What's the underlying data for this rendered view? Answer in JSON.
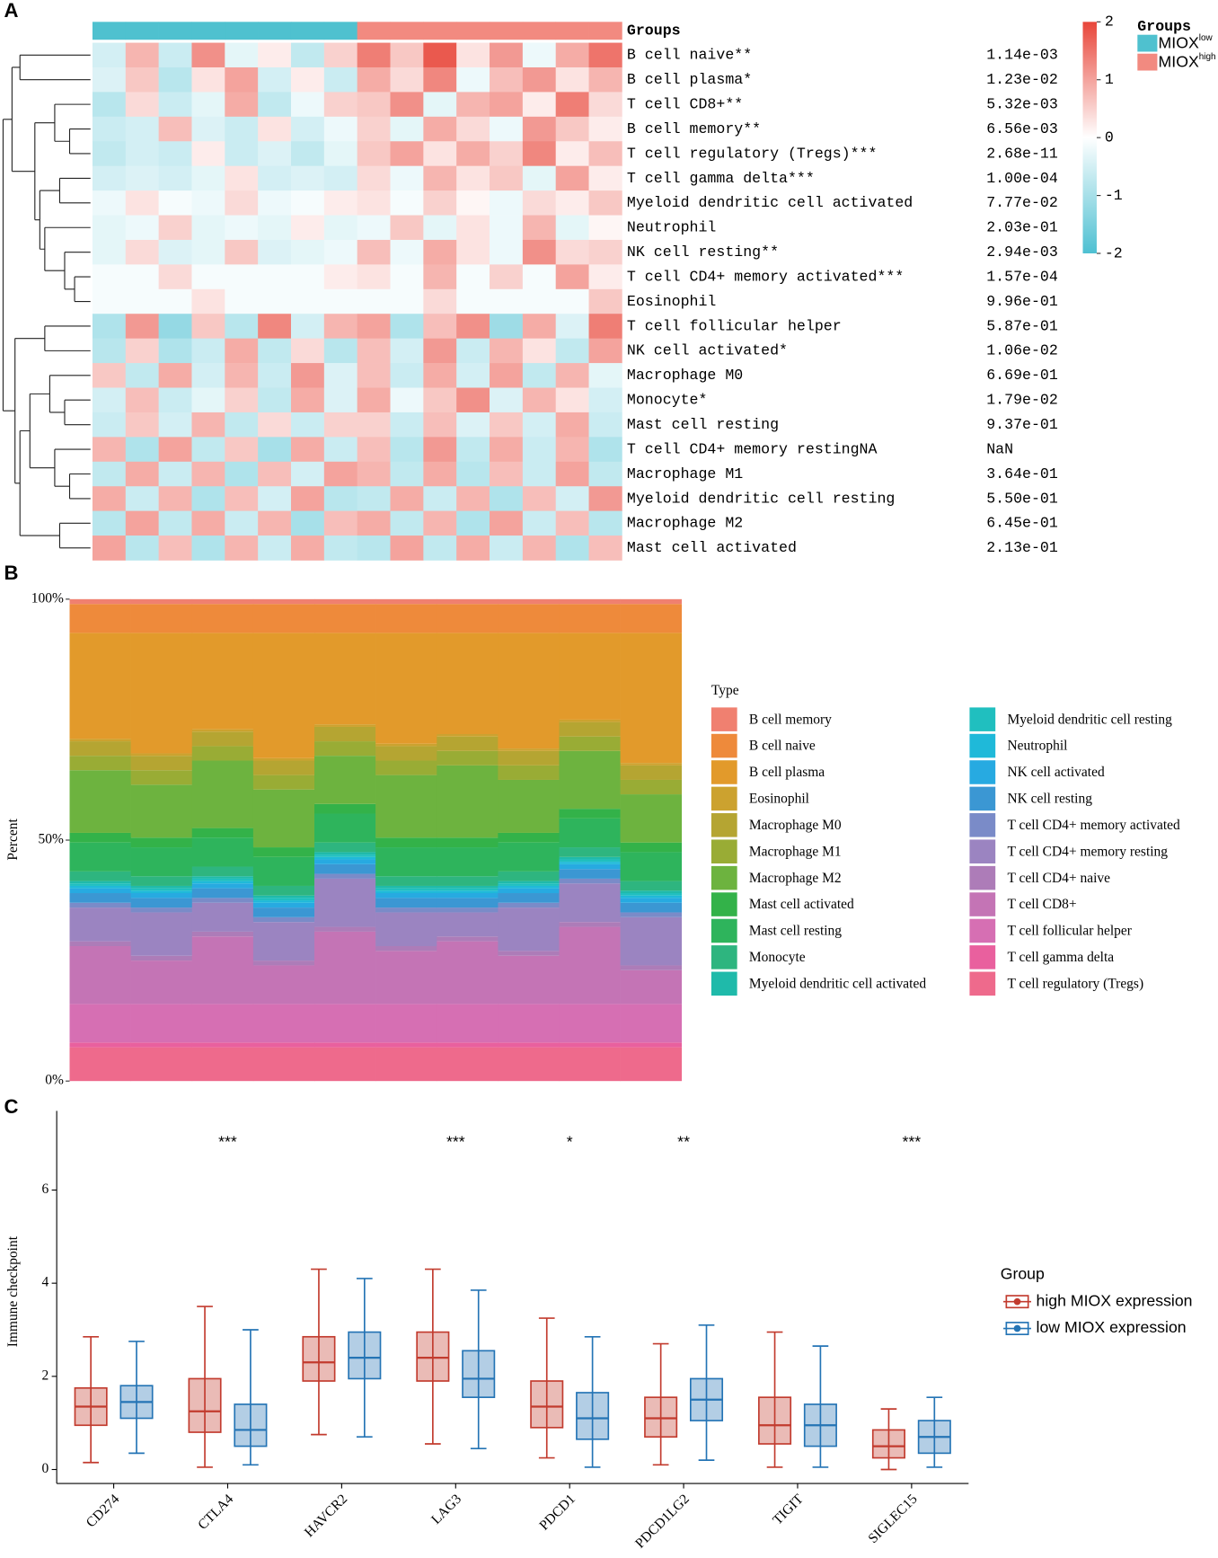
{
  "chart_data": [
    {
      "type": "heatmap",
      "panel": "A",
      "group_title": "Groups",
      "groups": [
        {
          "name": "MIOX",
          "sup": "low",
          "color": "#4fc1cf"
        },
        {
          "name": "MIOX",
          "sup": "high",
          "color": "#f28a80"
        }
      ],
      "column_groups": [
        0,
        0,
        0,
        0,
        0,
        0,
        0,
        0,
        1,
        1,
        1,
        1,
        1,
        1,
        1,
        1
      ],
      "colorbar": {
        "range": [
          -2,
          2
        ],
        "ticks": [
          2,
          1,
          0,
          -1,
          -2
        ],
        "colors": [
          "#4ec0d2",
          "#ffffff",
          "#e8463a"
        ]
      },
      "rows": [
        {
          "label": "B cell naive**",
          "p": "1.14e-03",
          "values": [
            -0.5,
            0.8,
            -0.6,
            1.2,
            -0.3,
            0.2,
            -0.7,
            0.5,
            1.4,
            0.6,
            1.8,
            0.3,
            1.1,
            -0.2,
            0.9,
            1.5
          ]
        },
        {
          "label": "B cell plasma*",
          "p": "1.23e-02",
          "values": [
            -0.4,
            0.6,
            -0.8,
            0.3,
            1.0,
            -0.5,
            0.2,
            -0.6,
            0.9,
            0.4,
            1.3,
            -0.2,
            0.7,
            1.1,
            0.3,
            0.8
          ]
        },
        {
          "label": "T cell CD8+**",
          "p": "5.32e-03",
          "values": [
            -0.8,
            0.4,
            -0.6,
            -0.3,
            0.9,
            -0.7,
            -0.2,
            0.5,
            0.6,
            1.2,
            -0.3,
            0.8,
            1.0,
            0.2,
            1.4,
            0.4
          ]
        },
        {
          "label": "B cell memory**",
          "p": "6.56e-03",
          "values": [
            -0.6,
            -0.5,
            0.7,
            -0.4,
            -0.6,
            0.3,
            -0.5,
            -0.2,
            0.5,
            -0.3,
            0.9,
            0.4,
            -0.2,
            1.1,
            0.6,
            0.2
          ]
        },
        {
          "label": "T cell regulatory (Tregs)***",
          "p": "2.68e-11",
          "values": [
            -0.7,
            -0.5,
            -0.6,
            0.2,
            -0.6,
            -0.4,
            -0.7,
            -0.3,
            0.6,
            1.0,
            0.3,
            0.9,
            0.5,
            1.3,
            0.2,
            0.7
          ]
        },
        {
          "label": "T cell gamma delta***",
          "p": "1.00e-04",
          "values": [
            -0.5,
            -0.4,
            -0.5,
            -0.3,
            0.3,
            -0.5,
            -0.4,
            -0.5,
            0.4,
            -0.2,
            0.8,
            0.3,
            0.6,
            -0.3,
            1.0,
            0.2
          ]
        },
        {
          "label": "Myeloid dendritic cell activated",
          "p": "7.77e-02",
          "values": [
            -0.2,
            0.3,
            -0.1,
            -0.2,
            0.4,
            -0.2,
            -0.1,
            0.2,
            0.3,
            -0.1,
            0.5,
            0.1,
            -0.2,
            0.4,
            0.2,
            0.6
          ]
        },
        {
          "label": "Neutrophil",
          "p": "2.03e-01",
          "values": [
            -0.3,
            -0.2,
            0.5,
            -0.3,
            -0.2,
            -0.3,
            0.2,
            -0.3,
            -0.2,
            0.6,
            -0.3,
            0.3,
            -0.2,
            0.8,
            -0.3,
            0.1
          ]
        },
        {
          "label": "NK cell resting**",
          "p": "2.94e-03",
          "values": [
            -0.3,
            0.4,
            -0.4,
            -0.3,
            0.6,
            -0.4,
            -0.3,
            -0.2,
            0.7,
            -0.2,
            0.9,
            0.3,
            -0.2,
            1.2,
            0.4,
            0.5
          ]
        },
        {
          "label": "T cell CD4+ memory activated***",
          "p": "1.57e-04",
          "values": [
            -0.1,
            -0.1,
            0.4,
            -0.1,
            -0.1,
            -0.1,
            -0.1,
            0.2,
            0.3,
            -0.1,
            0.8,
            -0.1,
            0.5,
            -0.1,
            1.0,
            0.2
          ]
        },
        {
          "label": "Eosinophil",
          "p": "9.96e-01",
          "values": [
            -0.1,
            -0.1,
            -0.1,
            0.3,
            -0.1,
            -0.1,
            -0.1,
            -0.1,
            -0.1,
            -0.1,
            0.4,
            -0.1,
            -0.1,
            -0.1,
            -0.1,
            0.6
          ]
        },
        {
          "label": "T cell follicular helper",
          "p": "5.87e-01",
          "values": [
            -0.9,
            1.1,
            -1.2,
            0.6,
            -0.8,
            1.3,
            -0.5,
            0.8,
            1.0,
            -0.9,
            0.7,
            1.2,
            -1.1,
            0.9,
            -0.4,
            1.4
          ]
        },
        {
          "label": "NK cell activated*",
          "p": "1.06e-02",
          "values": [
            -0.8,
            0.5,
            -0.9,
            -0.6,
            0.9,
            -0.7,
            0.4,
            -0.8,
            0.7,
            -0.5,
            1.1,
            -0.6,
            0.8,
            0.3,
            -0.7,
            1.0
          ]
        },
        {
          "label": "Macrophage M0",
          "p": "6.69e-01",
          "values": [
            0.6,
            -0.7,
            0.9,
            -0.5,
            0.8,
            -0.6,
            1.1,
            -0.4,
            0.7,
            -0.6,
            0.9,
            -0.5,
            1.0,
            -0.7,
            0.8,
            -0.3
          ]
        },
        {
          "label": "Monocyte*",
          "p": "1.79e-02",
          "values": [
            -0.5,
            0.7,
            -0.6,
            -0.3,
            0.5,
            -0.7,
            0.9,
            -0.4,
            0.9,
            -0.2,
            0.6,
            1.2,
            -0.4,
            0.8,
            0.3,
            -0.5
          ]
        },
        {
          "label": "Mast cell resting",
          "p": "9.37e-01",
          "values": [
            -0.6,
            0.6,
            -0.5,
            0.8,
            -0.7,
            0.4,
            -0.6,
            0.5,
            0.5,
            -0.6,
            0.7,
            -0.4,
            0.6,
            -0.5,
            0.9,
            -0.6
          ]
        },
        {
          "label": "T cell CD4+ memory restingNA",
          "p": "NaN",
          "values": [
            0.8,
            -0.9,
            1.0,
            -0.7,
            0.6,
            -1.0,
            0.9,
            -0.6,
            0.7,
            -0.8,
            1.1,
            -0.7,
            0.9,
            -0.6,
            0.8,
            -0.9
          ]
        },
        {
          "label": "Macrophage M1",
          "p": "3.64e-01",
          "values": [
            -0.7,
            0.9,
            -0.6,
            0.8,
            -0.9,
            0.7,
            -0.5,
            1.0,
            0.8,
            -0.7,
            0.9,
            -0.8,
            0.7,
            -0.6,
            1.0,
            -0.7
          ]
        },
        {
          "label": "Myeloid dendritic cell resting",
          "p": "5.50e-01",
          "values": [
            0.9,
            -0.6,
            0.8,
            -0.9,
            0.7,
            -0.5,
            1.0,
            -0.8,
            -0.7,
            0.9,
            -0.6,
            0.8,
            -0.9,
            0.7,
            -0.5,
            1.1
          ]
        },
        {
          "label": "Macrophage M2",
          "p": "6.45e-01",
          "values": [
            -0.8,
            1.0,
            -0.7,
            0.9,
            -0.6,
            0.8,
            -1.0,
            0.7,
            0.9,
            -0.7,
            0.8,
            -0.9,
            1.0,
            -0.6,
            0.7,
            -0.8
          ]
        },
        {
          "label": "Mast cell activated",
          "p": "2.13e-01",
          "values": [
            1.0,
            -0.8,
            0.7,
            -0.9,
            0.8,
            -0.6,
            0.9,
            -0.7,
            -0.8,
            1.0,
            -0.7,
            0.9,
            -0.6,
            0.8,
            -0.9,
            0.7
          ]
        }
      ]
    },
    {
      "type": "stacked_bar",
      "panel": "B",
      "ylabel": "Percent",
      "legend_title": "Type",
      "categories": [
        null,
        null,
        null,
        null,
        null,
        null,
        null,
        null,
        null,
        null
      ],
      "ylim": [
        0,
        100
      ],
      "yticks": [
        {
          "value": 0,
          "label": "0%"
        },
        {
          "value": 50,
          "label": "50%"
        },
        {
          "value": 100,
          "label": "100%"
        }
      ],
      "series": [
        {
          "name": "B cell memory",
          "color": "#f08070",
          "values": [
            1,
            1,
            1,
            1,
            1,
            1,
            1,
            1,
            1,
            1
          ]
        },
        {
          "name": "B cell naive",
          "color": "#ee8a3b",
          "values": [
            6,
            6,
            6,
            6,
            6,
            6,
            6,
            6,
            6,
            6
          ]
        },
        {
          "name": "B cell plasma",
          "color": "#e29a2b",
          "values": [
            22,
            25,
            20,
            26,
            19,
            23,
            21,
            24,
            18,
            27
          ]
        },
        {
          "name": "Eosinophil",
          "color": "#cca22f",
          "values": [
            0.5,
            0.5,
            0.5,
            0.5,
            0.5,
            0.5,
            0.5,
            0.5,
            0.5,
            0.5
          ]
        },
        {
          "name": "Macrophage M0",
          "color": "#b5a532",
          "values": [
            3,
            3,
            3,
            3,
            3,
            3,
            3,
            3,
            3,
            3
          ]
        },
        {
          "name": "Macrophage M1",
          "color": "#99ac35",
          "values": [
            3,
            3,
            3,
            3,
            3,
            3,
            3,
            3,
            3,
            3
          ]
        },
        {
          "name": "Macrophage M2",
          "color": "#6db33f",
          "values": [
            13,
            11,
            14,
            12,
            10,
            13,
            15,
            11,
            12,
            10
          ]
        },
        {
          "name": "Mast cell activated",
          "color": "#33b249",
          "values": [
            2,
            2,
            2,
            2,
            2,
            2,
            2,
            2,
            2,
            2
          ]
        },
        {
          "name": "Mast cell resting",
          "color": "#2eb45c",
          "values": [
            6,
            6,
            6,
            6,
            6,
            6,
            6,
            6,
            6,
            6
          ]
        },
        {
          "name": "Monocyte",
          "color": "#2eb57f",
          "values": [
            2,
            2,
            2,
            2,
            2,
            2,
            2,
            2,
            2,
            2
          ]
        },
        {
          "name": "Myeloid dendritic cell activated",
          "color": "#1fbaaa",
          "values": [
            0.5,
            0.5,
            0.5,
            0.5,
            0.5,
            0.5,
            0.5,
            0.5,
            0.5,
            0.5
          ]
        },
        {
          "name": "Myeloid dendritic cell resting",
          "color": "#20bfbf",
          "values": [
            0.5,
            0.5,
            0.5,
            0.5,
            0.5,
            0.5,
            0.5,
            0.5,
            0.5,
            0.5
          ]
        },
        {
          "name": "Neutrophil",
          "color": "#1fb9d9",
          "values": [
            0.5,
            0.5,
            0.5,
            0.5,
            0.5,
            0.5,
            0.5,
            0.5,
            0.5,
            0.5
          ]
        },
        {
          "name": "NK cell activated",
          "color": "#27aae1",
          "values": [
            1,
            1,
            1,
            1,
            1,
            1,
            1,
            1,
            1,
            1
          ]
        },
        {
          "name": "NK cell resting",
          "color": "#3b97d3",
          "values": [
            2,
            2,
            2,
            2,
            2,
            2,
            2,
            2,
            2,
            2
          ]
        },
        {
          "name": "T cell CD4+ memory activated",
          "color": "#7a8bc8",
          "values": [
            1,
            1,
            1,
            1,
            1,
            1,
            1,
            1,
            1,
            1
          ]
        },
        {
          "name": "T cell CD4+ memory resting",
          "color": "#9b84c1",
          "values": [
            7,
            9,
            6,
            8,
            10,
            7,
            5,
            9,
            8,
            10
          ]
        },
        {
          "name": "T cell CD4+ naive",
          "color": "#ad7cb8",
          "values": [
            1,
            1,
            1,
            1,
            1,
            1,
            1,
            1,
            1,
            1
          ]
        },
        {
          "name": "T cell CD8+",
          "color": "#c474b5",
          "values": [
            12,
            9,
            14,
            8,
            15,
            11,
            13,
            10,
            16,
            7
          ]
        },
        {
          "name": "T cell follicular helper",
          "color": "#d66fb3",
          "values": [
            8,
            8,
            8,
            8,
            8,
            8,
            8,
            8,
            8,
            8
          ]
        },
        {
          "name": "T cell gamma delta",
          "color": "#e9609e",
          "values": [
            1,
            1,
            1,
            1,
            1,
            1,
            1,
            1,
            1,
            1
          ]
        },
        {
          "name": "T cell regulatory (Tregs)",
          "color": "#ee6a8c",
          "values": [
            7,
            7,
            7,
            7,
            7,
            7,
            7,
            7,
            7,
            7
          ]
        }
      ]
    },
    {
      "type": "box",
      "panel": "C",
      "ylabel": "Immune checkpoint",
      "legend_title": "Group",
      "categories": [
        "CD274",
        "CTLA4",
        "HAVCR2",
        "LAG3",
        "PDCD1",
        "PDCD1LG2",
        "TIGIT",
        "SIGLEC15"
      ],
      "significance": [
        null,
        "***",
        null,
        "***",
        "*",
        "**",
        null,
        "***"
      ],
      "ylim": [
        -0.3,
        7.7
      ],
      "yticks": [
        0,
        2,
        4,
        6
      ],
      "series": [
        {
          "name": "high MIOX expression",
          "color": "#c23b2e",
          "boxes": [
            {
              "min": 0.15,
              "q1": 0.95,
              "median": 1.35,
              "q3": 1.75,
              "max": 2.85
            },
            {
              "min": 0.05,
              "q1": 0.8,
              "median": 1.25,
              "q3": 1.95,
              "max": 3.5
            },
            {
              "min": 0.75,
              "q1": 1.9,
              "median": 2.3,
              "q3": 2.85,
              "max": 4.3
            },
            {
              "min": 0.55,
              "q1": 1.9,
              "median": 2.4,
              "q3": 2.95,
              "max": 4.3
            },
            {
              "min": 0.25,
              "q1": 0.9,
              "median": 1.35,
              "q3": 1.9,
              "max": 3.25
            },
            {
              "min": 0.1,
              "q1": 0.7,
              "median": 1.1,
              "q3": 1.55,
              "max": 2.7
            },
            {
              "min": 0.05,
              "q1": 0.55,
              "median": 0.95,
              "q3": 1.55,
              "max": 2.95
            },
            {
              "min": 0,
              "q1": 0.25,
              "median": 0.5,
              "q3": 0.85,
              "max": 1.3
            }
          ]
        },
        {
          "name": "low MIOX expression",
          "color": "#2474b5",
          "boxes": [
            {
              "min": 0.35,
              "q1": 1.1,
              "median": 1.45,
              "q3": 1.8,
              "max": 2.75
            },
            {
              "min": 0.1,
              "q1": 0.5,
              "median": 0.85,
              "q3": 1.4,
              "max": 3.0
            },
            {
              "min": 0.7,
              "q1": 1.95,
              "median": 2.4,
              "q3": 2.95,
              "max": 4.1
            },
            {
              "min": 0.45,
              "q1": 1.55,
              "median": 1.95,
              "q3": 2.55,
              "max": 3.85
            },
            {
              "min": 0.05,
              "q1": 0.65,
              "median": 1.1,
              "q3": 1.65,
              "max": 2.85
            },
            {
              "min": 0.2,
              "q1": 1.05,
              "median": 1.5,
              "q3": 1.95,
              "max": 3.1
            },
            {
              "min": 0.05,
              "q1": 0.5,
              "median": 0.95,
              "q3": 1.4,
              "max": 2.65
            },
            {
              "min": 0.05,
              "q1": 0.35,
              "median": 0.7,
              "q3": 1.05,
              "max": 1.55
            }
          ]
        }
      ]
    }
  ]
}
